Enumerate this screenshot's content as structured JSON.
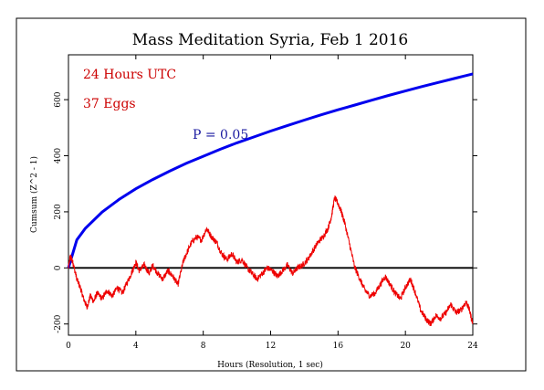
{
  "chart_data": {
    "type": "line",
    "title": "Mass Meditation Syria, Feb 1 2016",
    "xlabel": "Hours (Resolution, 1 sec)",
    "ylabel": "Cumsum (Z^2 - 1)",
    "xlim": [
      0,
      24
    ],
    "ylim": [
      -240,
      760
    ],
    "x_ticks": [
      0,
      4,
      8,
      12,
      16,
      20,
      24
    ],
    "y_ticks": [
      -200,
      0,
      200,
      400,
      600
    ],
    "annotations": [
      "24 Hours UTC",
      "37 Eggs"
    ],
    "grid": false,
    "series": [
      {
        "name": "P = 0.05",
        "style": "envelope",
        "color": "#0000ee",
        "x": [
          0,
          0.5,
          1,
          2,
          3,
          4,
          5,
          6,
          7,
          8,
          9,
          10,
          11,
          12,
          13,
          14,
          15,
          16,
          17,
          18,
          19,
          20,
          21,
          22,
          23,
          24
        ],
        "values": [
          0,
          100,
          141,
          199,
          244,
          282,
          315,
          345,
          373,
          398,
          423,
          446,
          467,
          488,
          508,
          527,
          546,
          564,
          581,
          598,
          615,
          631,
          647,
          662,
          677,
          692
        ]
      },
      {
        "name": "Cumsum",
        "style": "trace",
        "color": "#ee0000",
        "x": [
          0,
          0.1,
          0.2,
          0.3,
          0.5,
          0.7,
          0.9,
          1.1,
          1.3,
          1.5,
          1.7,
          2.0,
          2.3,
          2.6,
          2.9,
          3.2,
          3.5,
          3.8,
          4.0,
          4.2,
          4.5,
          4.8,
          5.0,
          5.3,
          5.6,
          5.9,
          6.2,
          6.5,
          6.8,
          7.0,
          7.3,
          7.6,
          7.9,
          8.2,
          8.5,
          8.8,
          9.1,
          9.4,
          9.7,
          10.0,
          10.3,
          10.6,
          10.9,
          11.2,
          11.5,
          11.8,
          12.1,
          12.4,
          12.7,
          13.0,
          13.3,
          13.6,
          13.9,
          14.2,
          14.5,
          14.8,
          15.1,
          15.4,
          15.6,
          15.8,
          16.0,
          16.2,
          16.4,
          16.7,
          17.0,
          17.3,
          17.6,
          17.9,
          18.2,
          18.5,
          18.8,
          19.1,
          19.4,
          19.7,
          20.0,
          20.3,
          20.6,
          20.9,
          21.2,
          21.5,
          21.8,
          22.1,
          22.4,
          22.7,
          23.0,
          23.3,
          23.6,
          23.8,
          24.0
        ],
        "values": [
          0,
          40,
          30,
          10,
          -40,
          -70,
          -110,
          -140,
          -100,
          -120,
          -90,
          -110,
          -80,
          -100,
          -70,
          -90,
          -50,
          -10,
          20,
          -10,
          10,
          -20,
          10,
          -20,
          -40,
          -10,
          -30,
          -60,
          20,
          50,
          90,
          110,
          100,
          140,
          110,
          90,
          50,
          30,
          50,
          20,
          30,
          0,
          -20,
          -40,
          -20,
          0,
          -10,
          -30,
          -10,
          10,
          -20,
          0,
          10,
          30,
          60,
          90,
          110,
          140,
          180,
          250,
          230,
          200,
          160,
          80,
          0,
          -40,
          -80,
          -100,
          -90,
          -60,
          -30,
          -60,
          -90,
          -110,
          -70,
          -40,
          -90,
          -150,
          -180,
          -200,
          -170,
          -180,
          -160,
          -130,
          -160,
          -150,
          -120,
          -150,
          -200
        ]
      }
    ]
  }
}
